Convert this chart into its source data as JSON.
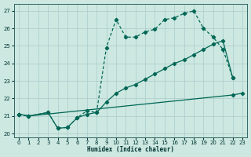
{
  "xlabel": "Humidex (Indice chaleur)",
  "bg_color": "#cce8e0",
  "grid_color": "#aacccc",
  "line_color": "#006655",
  "xlim": [
    -0.5,
    23.5
  ],
  "ylim": [
    19.8,
    27.4
  ],
  "yticks": [
    20,
    21,
    22,
    23,
    24,
    25,
    26,
    27
  ],
  "xticks": [
    0,
    1,
    2,
    3,
    4,
    5,
    6,
    7,
    8,
    9,
    10,
    11,
    12,
    13,
    14,
    15,
    16,
    17,
    18,
    19,
    20,
    21,
    22,
    23
  ],
  "curve_upper_dashed": {
    "x": [
      0,
      1,
      3,
      4,
      5,
      6,
      7,
      8,
      9,
      10,
      11,
      12,
      13,
      14,
      15,
      16,
      17,
      18,
      19,
      20,
      21,
      22
    ],
    "y": [
      21.1,
      21.0,
      21.2,
      20.3,
      20.35,
      20.9,
      21.3,
      21.2,
      24.9,
      26.5,
      25.5,
      25.5,
      25.8,
      25.95,
      26.5,
      26.6,
      26.85,
      27.0,
      26.0,
      25.5,
      24.8,
      23.2
    ]
  },
  "curve_middle_solid": {
    "x": [
      0,
      1,
      3,
      4,
      5,
      6,
      7,
      8,
      9,
      10,
      11,
      12,
      13,
      14,
      15,
      16,
      17,
      18,
      19,
      20,
      21,
      22
    ],
    "y": [
      21.1,
      21.0,
      21.2,
      20.3,
      20.35,
      20.9,
      21.1,
      21.2,
      21.8,
      22.3,
      22.6,
      22.8,
      23.1,
      23.4,
      23.7,
      24.0,
      24.2,
      24.5,
      24.8,
      25.1,
      25.3,
      23.2
    ]
  },
  "curve_lower_solid": {
    "x": [
      0,
      1,
      22,
      23
    ],
    "y": [
      21.1,
      21.0,
      22.2,
      22.3
    ]
  }
}
